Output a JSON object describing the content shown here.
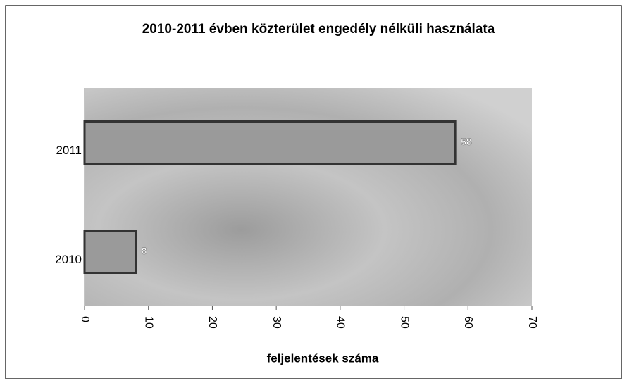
{
  "chart_data": {
    "type": "bar",
    "orientation": "horizontal",
    "title": "2010-2011 évben  közterület engedély nélküli használata",
    "x_label": "feljelentések száma",
    "categories": [
      "2010",
      "2011"
    ],
    "values": [
      8,
      58
    ],
    "color": "#9a9a9a",
    "xlim": [
      0,
      70
    ],
    "xticks": [
      0,
      10,
      20,
      30,
      40,
      50,
      60,
      70
    ]
  }
}
